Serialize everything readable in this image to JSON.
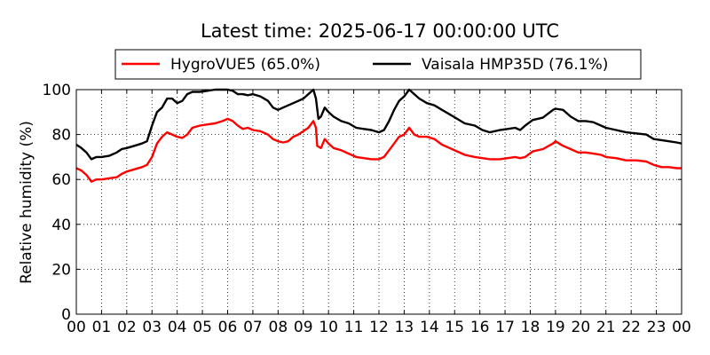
{
  "chart_data": {
    "type": "line",
    "title": "Latest time: 2025-06-17 00:00:00 UTC",
    "ylabel": "Relative humidity (%)",
    "xlabel": "",
    "xlim": [
      0,
      24
    ],
    "ylim": [
      0,
      100
    ],
    "grid": true,
    "legend_position": "top",
    "x_tick_labels": [
      "00",
      "01",
      "02",
      "03",
      "04",
      "05",
      "06",
      "07",
      "08",
      "09",
      "10",
      "11",
      "12",
      "13",
      "14",
      "15",
      "16",
      "17",
      "18",
      "19",
      "20",
      "21",
      "22",
      "23",
      "00"
    ],
    "y_tick_labels": [
      "0",
      "20",
      "40",
      "60",
      "80",
      "100"
    ],
    "series": [
      {
        "name": "HygroVUE5 (65.0%)",
        "color": "#ff0000",
        "points": [
          [
            0,
            65
          ],
          [
            0.2,
            64
          ],
          [
            0.4,
            62
          ],
          [
            0.6,
            59
          ],
          [
            0.8,
            60
          ],
          [
            1.0,
            60
          ],
          [
            1.3,
            60.5
          ],
          [
            1.6,
            61
          ],
          [
            1.8,
            62.5
          ],
          [
            2.0,
            63.5
          ],
          [
            2.3,
            64.5
          ],
          [
            2.6,
            65.5
          ],
          [
            2.8,
            66.5
          ],
          [
            3.0,
            70
          ],
          [
            3.2,
            76
          ],
          [
            3.4,
            79
          ],
          [
            3.6,
            81
          ],
          [
            3.8,
            80
          ],
          [
            4.0,
            79
          ],
          [
            4.2,
            78.5
          ],
          [
            4.4,
            80
          ],
          [
            4.6,
            83
          ],
          [
            4.9,
            84
          ],
          [
            5.2,
            84.5
          ],
          [
            5.5,
            85
          ],
          [
            5.8,
            86
          ],
          [
            6.0,
            87
          ],
          [
            6.2,
            86
          ],
          [
            6.4,
            84
          ],
          [
            6.6,
            82.5
          ],
          [
            6.8,
            83
          ],
          [
            7.0,
            82
          ],
          [
            7.3,
            81.5
          ],
          [
            7.6,
            80
          ],
          [
            7.8,
            78
          ],
          [
            8.0,
            77
          ],
          [
            8.2,
            76.5
          ],
          [
            8.4,
            77
          ],
          [
            8.6,
            79
          ],
          [
            8.8,
            80
          ],
          [
            9.0,
            81.5
          ],
          [
            9.2,
            83
          ],
          [
            9.4,
            86
          ],
          [
            9.5,
            83
          ],
          [
            9.55,
            75
          ],
          [
            9.7,
            74
          ],
          [
            9.85,
            78
          ],
          [
            10.0,
            76
          ],
          [
            10.2,
            74
          ],
          [
            10.5,
            73
          ],
          [
            10.8,
            71.5
          ],
          [
            11.1,
            70
          ],
          [
            11.4,
            69.5
          ],
          [
            11.7,
            69
          ],
          [
            12.0,
            69
          ],
          [
            12.2,
            70
          ],
          [
            12.4,
            73
          ],
          [
            12.6,
            76
          ],
          [
            12.8,
            79
          ],
          [
            13.0,
            80
          ],
          [
            13.2,
            83
          ],
          [
            13.4,
            80
          ],
          [
            13.6,
            79
          ],
          [
            13.9,
            79
          ],
          [
            14.2,
            78
          ],
          [
            14.5,
            75.5
          ],
          [
            14.8,
            74
          ],
          [
            15.1,
            72.5
          ],
          [
            15.4,
            71
          ],
          [
            15.8,
            70
          ],
          [
            16.1,
            69.5
          ],
          [
            16.4,
            69
          ],
          [
            16.8,
            69
          ],
          [
            17.1,
            69.5
          ],
          [
            17.4,
            70
          ],
          [
            17.6,
            69.5
          ],
          [
            17.8,
            70
          ],
          [
            18.1,
            72.5
          ],
          [
            18.5,
            73.5
          ],
          [
            18.9,
            76
          ],
          [
            19.0,
            77
          ],
          [
            19.3,
            75
          ],
          [
            19.6,
            73.5
          ],
          [
            19.9,
            72
          ],
          [
            20.2,
            72
          ],
          [
            20.5,
            71.5
          ],
          [
            20.8,
            71
          ],
          [
            21.0,
            70
          ],
          [
            21.4,
            69.5
          ],
          [
            21.8,
            68.5
          ],
          [
            22.2,
            68.5
          ],
          [
            22.6,
            68
          ],
          [
            22.9,
            66.5
          ],
          [
            23.2,
            65.5
          ],
          [
            23.5,
            65.5
          ],
          [
            23.8,
            65
          ],
          [
            24,
            65
          ]
        ]
      },
      {
        "name": "Vaisala HMP35D (76.1%)",
        "color": "#000000",
        "points": [
          [
            0,
            75.5
          ],
          [
            0.2,
            74
          ],
          [
            0.4,
            72
          ],
          [
            0.6,
            69
          ],
          [
            0.8,
            70
          ],
          [
            1.0,
            70
          ],
          [
            1.3,
            70.5
          ],
          [
            1.6,
            72
          ],
          [
            1.8,
            73.5
          ],
          [
            2.0,
            74
          ],
          [
            2.3,
            75
          ],
          [
            2.6,
            76
          ],
          [
            2.8,
            77
          ],
          [
            3.0,
            84
          ],
          [
            3.2,
            90
          ],
          [
            3.4,
            92
          ],
          [
            3.6,
            96
          ],
          [
            3.8,
            96
          ],
          [
            4.0,
            94
          ],
          [
            4.2,
            95
          ],
          [
            4.4,
            98
          ],
          [
            4.6,
            99
          ],
          [
            4.9,
            99
          ],
          [
            5.2,
            99.5
          ],
          [
            5.5,
            100
          ],
          [
            5.8,
            100
          ],
          [
            6.0,
            100
          ],
          [
            6.2,
            99.5
          ],
          [
            6.4,
            98
          ],
          [
            6.6,
            98
          ],
          [
            6.8,
            97.5
          ],
          [
            7.0,
            98
          ],
          [
            7.3,
            97
          ],
          [
            7.6,
            95
          ],
          [
            7.8,
            92
          ],
          [
            8.0,
            91
          ],
          [
            8.2,
            92
          ],
          [
            8.4,
            93
          ],
          [
            8.6,
            94
          ],
          [
            8.8,
            95
          ],
          [
            9.0,
            96
          ],
          [
            9.2,
            98
          ],
          [
            9.4,
            100
          ],
          [
            9.5,
            96
          ],
          [
            9.6,
            87
          ],
          [
            9.7,
            88
          ],
          [
            9.85,
            92
          ],
          [
            10.0,
            90
          ],
          [
            10.2,
            88
          ],
          [
            10.5,
            86
          ],
          [
            10.8,
            85
          ],
          [
            11.1,
            83
          ],
          [
            11.4,
            82.5
          ],
          [
            11.7,
            82
          ],
          [
            12.0,
            81
          ],
          [
            12.2,
            82
          ],
          [
            12.4,
            86
          ],
          [
            12.6,
            91
          ],
          [
            12.8,
            95
          ],
          [
            13.0,
            97
          ],
          [
            13.2,
            100
          ],
          [
            13.4,
            98
          ],
          [
            13.6,
            96
          ],
          [
            13.9,
            94
          ],
          [
            14.2,
            93
          ],
          [
            14.5,
            91
          ],
          [
            14.8,
            89
          ],
          [
            15.1,
            87
          ],
          [
            15.4,
            85
          ],
          [
            15.8,
            84
          ],
          [
            16.1,
            82
          ],
          [
            16.4,
            81
          ],
          [
            16.8,
            82
          ],
          [
            17.1,
            82.5
          ],
          [
            17.4,
            83
          ],
          [
            17.6,
            82
          ],
          [
            17.8,
            84
          ],
          [
            18.1,
            86.5
          ],
          [
            18.5,
            87.5
          ],
          [
            18.9,
            91
          ],
          [
            19.0,
            91.5
          ],
          [
            19.3,
            91
          ],
          [
            19.6,
            88
          ],
          [
            19.9,
            86
          ],
          [
            20.2,
            86
          ],
          [
            20.5,
            85.5
          ],
          [
            20.8,
            84
          ],
          [
            21.0,
            83
          ],
          [
            21.4,
            82
          ],
          [
            21.8,
            81
          ],
          [
            22.2,
            80.5
          ],
          [
            22.6,
            80
          ],
          [
            22.9,
            78
          ],
          [
            23.2,
            77.5
          ],
          [
            23.5,
            77
          ],
          [
            23.8,
            76.5
          ],
          [
            24,
            76
          ]
        ]
      }
    ]
  }
}
